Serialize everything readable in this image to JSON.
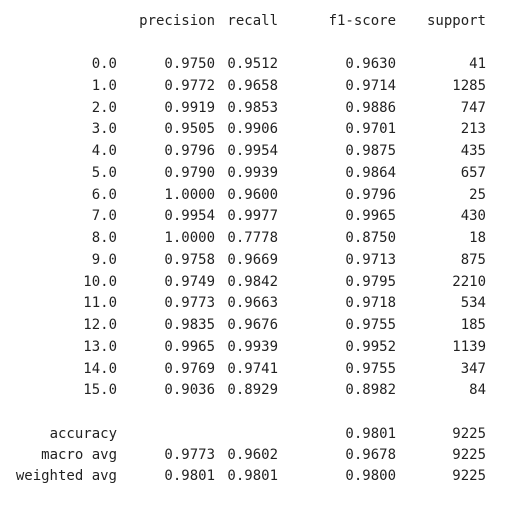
{
  "header": [
    "precision",
    "recall",
    "f1-score",
    "support"
  ],
  "rows": [
    [
      "0.0",
      "0.9750",
      "0.9512",
      "0.9630",
      "41"
    ],
    [
      "1.0",
      "0.9772",
      "0.9658",
      "0.9714",
      "1285"
    ],
    [
      "2.0",
      "0.9919",
      "0.9853",
      "0.9886",
      "747"
    ],
    [
      "3.0",
      "0.9505",
      "0.9906",
      "0.9701",
      "213"
    ],
    [
      "4.0",
      "0.9796",
      "0.9954",
      "0.9875",
      "435"
    ],
    [
      "5.0",
      "0.9790",
      "0.9939",
      "0.9864",
      "657"
    ],
    [
      "6.0",
      "1.0000",
      "0.9600",
      "0.9796",
      "25"
    ],
    [
      "7.0",
      "0.9954",
      "0.9977",
      "0.9965",
      "430"
    ],
    [
      "8.0",
      "1.0000",
      "0.7778",
      "0.8750",
      "18"
    ],
    [
      "9.0",
      "0.9758",
      "0.9669",
      "0.9713",
      "875"
    ],
    [
      "10.0",
      "0.9749",
      "0.9842",
      "0.9795",
      "2210"
    ],
    [
      "11.0",
      "0.9773",
      "0.9663",
      "0.9718",
      "534"
    ],
    [
      "12.0",
      "0.9835",
      "0.9676",
      "0.9755",
      "185"
    ],
    [
      "13.0",
      "0.9965",
      "0.9939",
      "0.9952",
      "1139"
    ],
    [
      "14.0",
      "0.9769",
      "0.9741",
      "0.9755",
      "347"
    ],
    [
      "15.0",
      "0.9036",
      "0.8929",
      "0.8982",
      "84"
    ]
  ],
  "summary": [
    {
      "label": "accuracy",
      "f1_score": "0.9801",
      "support": "9225"
    },
    {
      "label": "macro avg",
      "precision": "0.9773",
      "recall": "0.9602",
      "f1_score": "0.9678",
      "support": "9225"
    },
    {
      "label": "weighted avg",
      "precision": "0.9801",
      "recall": "0.9801",
      "f1_score": "0.9800",
      "support": "9225"
    }
  ]
}
